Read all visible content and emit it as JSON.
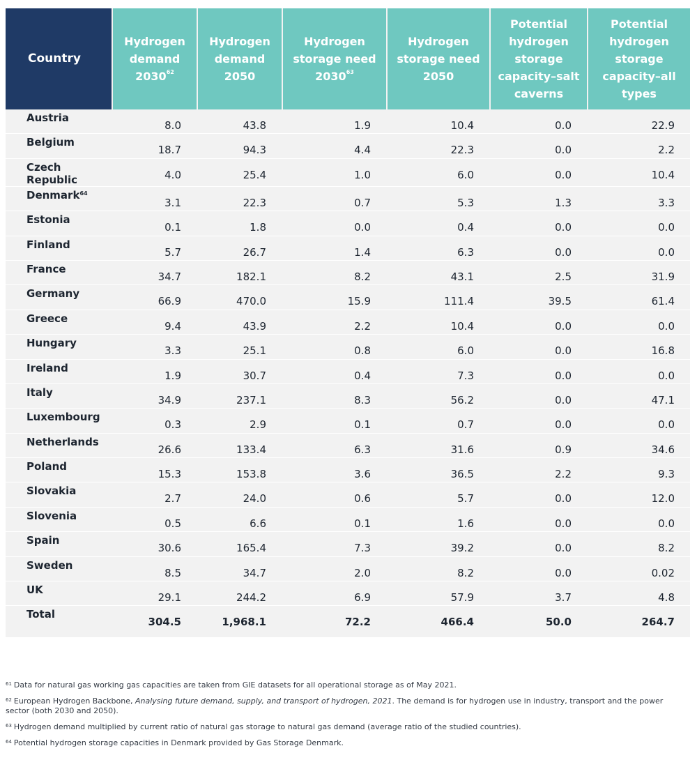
{
  "table": {
    "headers": {
      "country": "Country",
      "h1": "Hydrogen demand 2030",
      "h1_sup": "62",
      "h2": "Hydrogen demand 2050",
      "h3": "Hydrogen storage need 2030",
      "h3_sup": "63",
      "h4": "Hydrogen storage need 2050",
      "h5": "Potential hydrogen storage capacity–salt caverns",
      "h6": "Potential hydrogen storage capacity–all types"
    },
    "rows": [
      {
        "country": "Austria",
        "sup": "",
        "d2030": "8.0",
        "d2050": "43.8",
        "s2030": "1.9",
        "s2050": "10.4",
        "salt": "0.0",
        "all": "22.9"
      },
      {
        "country": "Belgium",
        "sup": "",
        "d2030": "18.7",
        "d2050": "94.3",
        "s2030": "4.4",
        "s2050": "22.3",
        "salt": "0.0",
        "all": "2.2"
      },
      {
        "country": "Czech Republic",
        "sup": "",
        "d2030": "4.0",
        "d2050": "25.4",
        "s2030": "1.0",
        "s2050": "6.0",
        "salt": "0.0",
        "all": "10.4"
      },
      {
        "country": "Denmark",
        "sup": "64",
        "d2030": "3.1",
        "d2050": "22.3",
        "s2030": "0.7",
        "s2050": "5.3",
        "salt": "1.3",
        "all": "3.3"
      },
      {
        "country": "Estonia",
        "sup": "",
        "d2030": "0.1",
        "d2050": "1.8",
        "s2030": "0.0",
        "s2050": "0.4",
        "salt": "0.0",
        "all": "0.0"
      },
      {
        "country": "Finland",
        "sup": "",
        "d2030": "5.7",
        "d2050": "26.7",
        "s2030": "1.4",
        "s2050": "6.3",
        "salt": "0.0",
        "all": "0.0"
      },
      {
        "country": "France",
        "sup": "",
        "d2030": "34.7",
        "d2050": "182.1",
        "s2030": "8.2",
        "s2050": "43.1",
        "salt": "2.5",
        "all": "31.9"
      },
      {
        "country": "Germany",
        "sup": "",
        "d2030": "66.9",
        "d2050": "470.0",
        "s2030": "15.9",
        "s2050": "111.4",
        "salt": "39.5",
        "all": "61.4"
      },
      {
        "country": "Greece",
        "sup": "",
        "d2030": "9.4",
        "d2050": "43.9",
        "s2030": "2.2",
        "s2050": "10.4",
        "salt": "0.0",
        "all": "0.0"
      },
      {
        "country": "Hungary",
        "sup": "",
        "d2030": "3.3",
        "d2050": "25.1",
        "s2030": "0.8",
        "s2050": "6.0",
        "salt": "0.0",
        "all": "16.8"
      },
      {
        "country": "Ireland",
        "sup": "",
        "d2030": "1.9",
        "d2050": "30.7",
        "s2030": "0.4",
        "s2050": "7.3",
        "salt": "0.0",
        "all": "0.0"
      },
      {
        "country": "Italy",
        "sup": "",
        "d2030": "34.9",
        "d2050": "237.1",
        "s2030": "8.3",
        "s2050": "56.2",
        "salt": "0.0",
        "all": "47.1"
      },
      {
        "country": "Luxembourg",
        "sup": "",
        "d2030": "0.3",
        "d2050": "2.9",
        "s2030": "0.1",
        "s2050": "0.7",
        "salt": "0.0",
        "all": "0.0"
      },
      {
        "country": "Netherlands",
        "sup": "",
        "d2030": "26.6",
        "d2050": "133.4",
        "s2030": "6.3",
        "s2050": "31.6",
        "salt": "0.9",
        "all": "34.6"
      },
      {
        "country": "Poland",
        "sup": "",
        "d2030": "15.3",
        "d2050": "153.8",
        "s2030": "3.6",
        "s2050": "36.5",
        "salt": "2.2",
        "all": "9.3"
      },
      {
        "country": "Slovakia",
        "sup": "",
        "d2030": "2.7",
        "d2050": "24.0",
        "s2030": "0.6",
        "s2050": "5.7",
        "salt": "0.0",
        "all": "12.0"
      },
      {
        "country": "Slovenia",
        "sup": "",
        "d2030": "0.5",
        "d2050": "6.6",
        "s2030": "0.1",
        "s2050": "1.6",
        "salt": "0.0",
        "all": "0.0"
      },
      {
        "country": "Spain",
        "sup": "",
        "d2030": "30.6",
        "d2050": "165.4",
        "s2030": "7.3",
        "s2050": "39.2",
        "salt": "0.0",
        "all": "8.2"
      },
      {
        "country": "Sweden",
        "sup": "",
        "d2030": "8.5",
        "d2050": "34.7",
        "s2030": "2.0",
        "s2050": "8.2",
        "salt": "0.0",
        "all": "0.02"
      },
      {
        "country": "UK",
        "sup": "",
        "d2030": "29.1",
        "d2050": "244.2",
        "s2030": "6.9",
        "s2050": "57.9",
        "salt": "3.7",
        "all": "4.8"
      }
    ],
    "total": {
      "label": "Total",
      "d2030": "304.5",
      "d2050": "1,968.1",
      "s2030": "72.2",
      "s2050": "466.4",
      "salt": "50.0",
      "all": "264.7"
    }
  },
  "footnotes": [
    {
      "num": "61",
      "text": "Data for natural gas working gas capacities are taken from GIE datasets for all operational storage as of May 2021."
    },
    {
      "num": "62",
      "text_before": "European Hydrogen Backbone, ",
      "italic": "Analysing future demand, supply, and transport of hydrogen, 2021",
      "text_after": ". The demand is for hydrogen use in industry, transport and the power sector (both 2030 and 2050)."
    },
    {
      "num": "63",
      "text": "Hydrogen demand multiplied by current ratio of natural gas storage to natural gas demand (average ratio of the studied countries)."
    },
    {
      "num": "64",
      "text": "Potential hydrogen storage capacities in Denmark provided by Gas Storage Denmark."
    }
  ]
}
